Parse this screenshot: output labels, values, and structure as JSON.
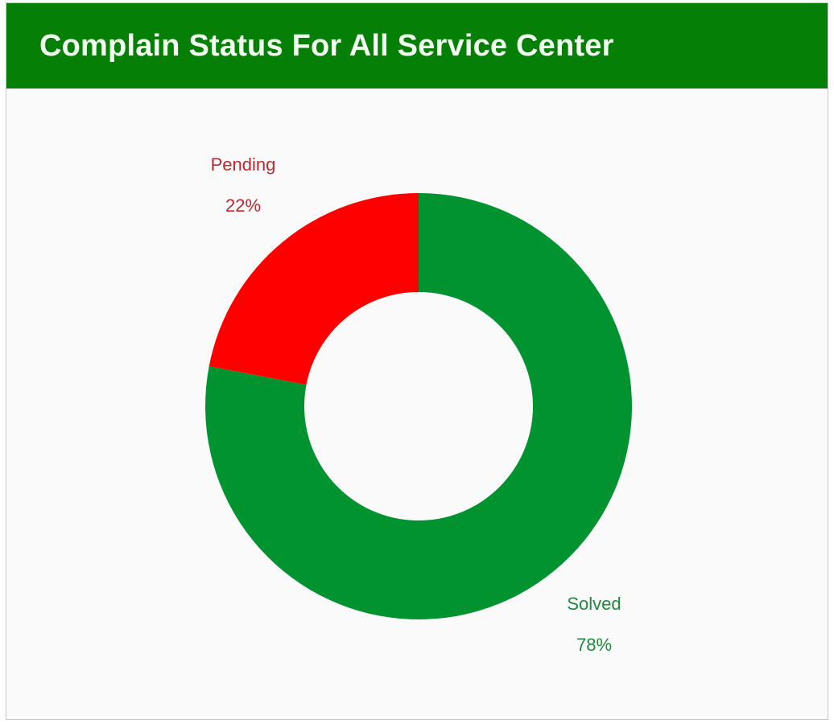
{
  "header": {
    "title": "Complain Status For All Service Center"
  },
  "colors": {
    "header": "#067f07",
    "pending": "#ff0000",
    "solved": "#029331",
    "pending_label": "#c0272d",
    "solved_label": "#1e8a3c"
  },
  "chart_data": {
    "type": "pie",
    "subtype": "donut",
    "title": "Complain Status For All Service Center",
    "slices": [
      {
        "label": "Pending",
        "value": 22,
        "value_label": "22%",
        "color": "#ff0000"
      },
      {
        "label": "Solved",
        "value": 78,
        "value_label": "78%",
        "color": "#029331"
      }
    ]
  }
}
